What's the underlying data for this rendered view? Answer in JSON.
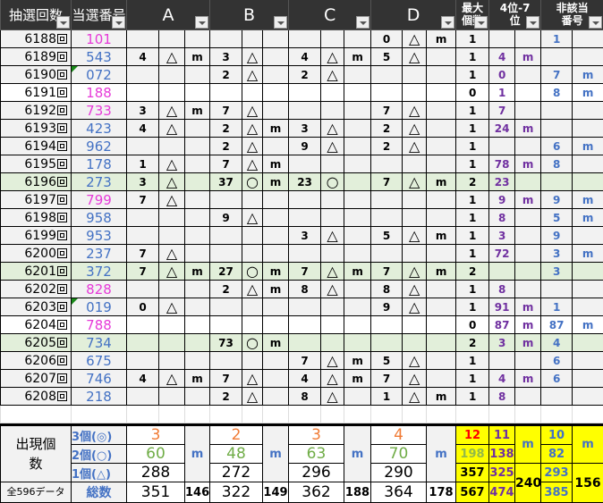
{
  "headers": [
    "抽選回数",
    "当選番号",
    "A",
    "B",
    "C",
    "D",
    "最大個数",
    "4位-7位",
    "非該当番号"
  ],
  "colors": {
    "pink": "#e63ad8",
    "blue": "#4472c4",
    "purple": "#7030a0",
    "orange": "#f07b35",
    "green": "#70ad47",
    "lightgreen": "#92b94a",
    "red": "#ff0000",
    "yellow": "#ffff00",
    "rowGreen": "#e2efda"
  },
  "rows": [
    {
      "draw": "6188",
      "num": "101",
      "color": "pink",
      "bg": "gray",
      "A": [
        "",
        "",
        ""
      ],
      "B": [
        "",
        "",
        ""
      ],
      "C": [
        "",
        "",
        ""
      ],
      "D": [
        "0",
        "△",
        "m"
      ],
      "max": "1",
      "p4": [
        "",
        ""
      ],
      "non": [
        "1",
        ""
      ]
    },
    {
      "draw": "6189",
      "num": "543",
      "color": "blue",
      "bg": "gray",
      "A": [
        "4",
        "△",
        "m"
      ],
      "B": [
        "3",
        "△",
        ""
      ],
      "C": [
        "4",
        "△",
        "m"
      ],
      "D": [
        "5",
        "△",
        ""
      ],
      "max": "1",
      "p4": [
        "4",
        "m"
      ],
      "non": [
        "",
        ""
      ]
    },
    {
      "draw": "6190",
      "num": "072",
      "color": "blue",
      "bg": "gray",
      "flag": true,
      "A": [
        "",
        "",
        ""
      ],
      "B": [
        "2",
        "△",
        ""
      ],
      "C": [
        "2",
        "△",
        ""
      ],
      "D": [
        "",
        "",
        ""
      ],
      "max": "1",
      "p4": [
        "0",
        ""
      ],
      "non": [
        "7",
        "m"
      ]
    },
    {
      "draw": "6191",
      "num": "188",
      "color": "pink",
      "bg": "white",
      "A": [
        "",
        "",
        ""
      ],
      "B": [
        "",
        "",
        ""
      ],
      "C": [
        "",
        "",
        ""
      ],
      "D": [
        "",
        "",
        ""
      ],
      "max": "0",
      "p4": [
        "1",
        ""
      ],
      "non": [
        "8",
        "m"
      ]
    },
    {
      "draw": "6192",
      "num": "733",
      "color": "pink",
      "bg": "gray",
      "A": [
        "3",
        "△",
        "m"
      ],
      "B": [
        "7",
        "△",
        ""
      ],
      "C": [
        "",
        "",
        ""
      ],
      "D": [
        "7",
        "△",
        ""
      ],
      "max": "1",
      "p4": [
        "7",
        ""
      ],
      "non": [
        "",
        ""
      ]
    },
    {
      "draw": "6193",
      "num": "423",
      "color": "blue",
      "bg": "gray",
      "A": [
        "4",
        "△",
        ""
      ],
      "B": [
        "2",
        "△",
        "m"
      ],
      "C": [
        "3",
        "△",
        ""
      ],
      "D": [
        "2",
        "△",
        ""
      ],
      "max": "1",
      "p4": [
        "24",
        "m"
      ],
      "non": [
        "",
        ""
      ]
    },
    {
      "draw": "6194",
      "num": "962",
      "color": "blue",
      "bg": "gray",
      "A": [
        "",
        "",
        ""
      ],
      "B": [
        "2",
        "△",
        ""
      ],
      "C": [
        "9",
        "△",
        ""
      ],
      "D": [
        "2",
        "△",
        ""
      ],
      "max": "1",
      "p4": [
        "",
        ""
      ],
      "non": [
        "6",
        "m"
      ]
    },
    {
      "draw": "6195",
      "num": "178",
      "color": "blue",
      "bg": "gray",
      "A": [
        "1",
        "△",
        ""
      ],
      "B": [
        "7",
        "△",
        "m"
      ],
      "C": [
        "",
        "",
        ""
      ],
      "D": [
        "",
        "",
        ""
      ],
      "max": "1",
      "p4": [
        "78",
        "m"
      ],
      "non": [
        "8",
        ""
      ]
    },
    {
      "draw": "6196",
      "num": "273",
      "color": "blue",
      "bg": "green",
      "A": [
        "3",
        "△",
        ""
      ],
      "B": [
        "37",
        "○",
        "m"
      ],
      "C": [
        "23",
        "○",
        ""
      ],
      "D": [
        "7",
        "△",
        "m"
      ],
      "max": "2",
      "p4": [
        "23",
        ""
      ],
      "non": [
        "",
        ""
      ]
    },
    {
      "draw": "6197",
      "num": "799",
      "color": "pink",
      "bg": "gray",
      "A": [
        "7",
        "△",
        ""
      ],
      "B": [
        "",
        "",
        ""
      ],
      "C": [
        "",
        "",
        ""
      ],
      "D": [
        "",
        "",
        ""
      ],
      "max": "1",
      "p4": [
        "9",
        "m"
      ],
      "non": [
        "9",
        "m"
      ]
    },
    {
      "draw": "6198",
      "num": "958",
      "color": "blue",
      "bg": "gray",
      "A": [
        "",
        "",
        ""
      ],
      "B": [
        "9",
        "△",
        ""
      ],
      "C": [
        "",
        "",
        ""
      ],
      "D": [
        "",
        "",
        ""
      ],
      "max": "1",
      "p4": [
        "8",
        ""
      ],
      "non": [
        "5",
        "m"
      ]
    },
    {
      "draw": "6199",
      "num": "953",
      "color": "blue",
      "bg": "gray",
      "A": [
        "",
        "",
        ""
      ],
      "B": [
        "",
        "",
        ""
      ],
      "C": [
        "3",
        "△",
        ""
      ],
      "D": [
        "5",
        "△",
        "m"
      ],
      "max": "1",
      "p4": [
        "3",
        ""
      ],
      "non": [
        "9",
        ""
      ]
    },
    {
      "draw": "6200",
      "num": "237",
      "color": "blue",
      "bg": "gray",
      "A": [
        "7",
        "△",
        ""
      ],
      "B": [
        "",
        "",
        ""
      ],
      "C": [
        "",
        "",
        ""
      ],
      "D": [
        "",
        "",
        ""
      ],
      "max": "1",
      "p4": [
        "72",
        ""
      ],
      "non": [
        "3",
        "m"
      ]
    },
    {
      "draw": "6201",
      "num": "372",
      "color": "blue",
      "bg": "green",
      "A": [
        "7",
        "△",
        "m"
      ],
      "B": [
        "27",
        "○",
        "m"
      ],
      "C": [
        "7",
        "△",
        "m"
      ],
      "D": [
        "7",
        "△",
        "m"
      ],
      "max": "2",
      "p4": [
        "",
        ""
      ],
      "non": [
        "3",
        ""
      ]
    },
    {
      "draw": "6202",
      "num": "828",
      "color": "pink",
      "bg": "gray",
      "A": [
        "",
        "",
        ""
      ],
      "B": [
        "2",
        "△",
        "m"
      ],
      "C": [
        "8",
        "△",
        ""
      ],
      "D": [
        "8",
        "△",
        ""
      ],
      "max": "1",
      "p4": [
        "8",
        ""
      ],
      "non": [
        "",
        ""
      ]
    },
    {
      "draw": "6203",
      "num": "019",
      "color": "blue",
      "bg": "gray",
      "flag": true,
      "A": [
        "0",
        "△",
        ""
      ],
      "B": [
        "",
        "",
        ""
      ],
      "C": [
        "",
        "",
        ""
      ],
      "D": [
        "9",
        "△",
        ""
      ],
      "max": "1",
      "p4": [
        "91",
        "m"
      ],
      "non": [
        "1",
        ""
      ]
    },
    {
      "draw": "6204",
      "num": "788",
      "color": "pink",
      "bg": "white",
      "A": [
        "",
        "",
        ""
      ],
      "B": [
        "",
        "",
        ""
      ],
      "C": [
        "",
        "",
        ""
      ],
      "D": [
        "",
        "",
        ""
      ],
      "max": "0",
      "p4": [
        "87",
        "m"
      ],
      "non": [
        "87",
        "m"
      ]
    },
    {
      "draw": "6205",
      "num": "734",
      "color": "blue",
      "bg": "green",
      "A": [
        "",
        "",
        ""
      ],
      "B": [
        "73",
        "○",
        "m"
      ],
      "C": [
        "",
        "",
        ""
      ],
      "D": [
        "",
        "",
        ""
      ],
      "max": "2",
      "p4": [
        "3",
        "m"
      ],
      "non": [
        "4",
        ""
      ]
    },
    {
      "draw": "6206",
      "num": "675",
      "color": "blue",
      "bg": "gray",
      "A": [
        "",
        "",
        ""
      ],
      "B": [
        "",
        "",
        ""
      ],
      "C": [
        "7",
        "△",
        "m"
      ],
      "D": [
        "5",
        "△",
        ""
      ],
      "max": "1",
      "p4": [
        "",
        ""
      ],
      "non": [
        "6",
        ""
      ]
    },
    {
      "draw": "6207",
      "num": "746",
      "color": "blue",
      "bg": "gray",
      "A": [
        "4",
        "△",
        "m"
      ],
      "B": [
        "7",
        "△",
        ""
      ],
      "C": [
        "4",
        "△",
        "m"
      ],
      "D": [
        "7",
        "△",
        ""
      ],
      "max": "1",
      "p4": [
        "4",
        "m"
      ],
      "non": [
        "6",
        ""
      ]
    },
    {
      "draw": "6208",
      "num": "218",
      "color": "blue",
      "bg": "gray",
      "A": [
        "",
        "",
        ""
      ],
      "B": [
        "2",
        "△",
        ""
      ],
      "C": [
        "8",
        "△",
        ""
      ],
      "D": [
        "1",
        "△",
        "m"
      ],
      "max": "1",
      "p4": [
        "8",
        ""
      ],
      "non": [
        "",
        ""
      ]
    }
  ],
  "footer": {
    "label": "出現個数",
    "sub": [
      "3個(◎)",
      "2個(○)",
      "1個(△)"
    ],
    "total_label": "全596データ",
    "total_sub": "総数",
    "groups": [
      {
        "c3": "3",
        "c2": "60",
        "c1": "288",
        "total": "351",
        "m": "m",
        "mtotal": "146"
      },
      {
        "c3": "2",
        "c2": "48",
        "c1": "272",
        "total": "322",
        "m": "m",
        "mtotal": "149"
      },
      {
        "c3": "3",
        "c2": "63",
        "c1": "296",
        "total": "362",
        "m": "m",
        "mtotal": "188"
      },
      {
        "c3": "4",
        "c2": "70",
        "c1": "290",
        "total": "364",
        "m": "m",
        "mtotal": "178"
      }
    ],
    "max": [
      "12",
      "198",
      "357",
      "567"
    ],
    "p4": [
      "11",
      "138",
      "325",
      "474"
    ],
    "p4m": "m",
    "p4mtotal": "240",
    "non": [
      "10",
      "82",
      "293",
      "385"
    ],
    "nonm": "m",
    "nonmtotal": "156"
  }
}
